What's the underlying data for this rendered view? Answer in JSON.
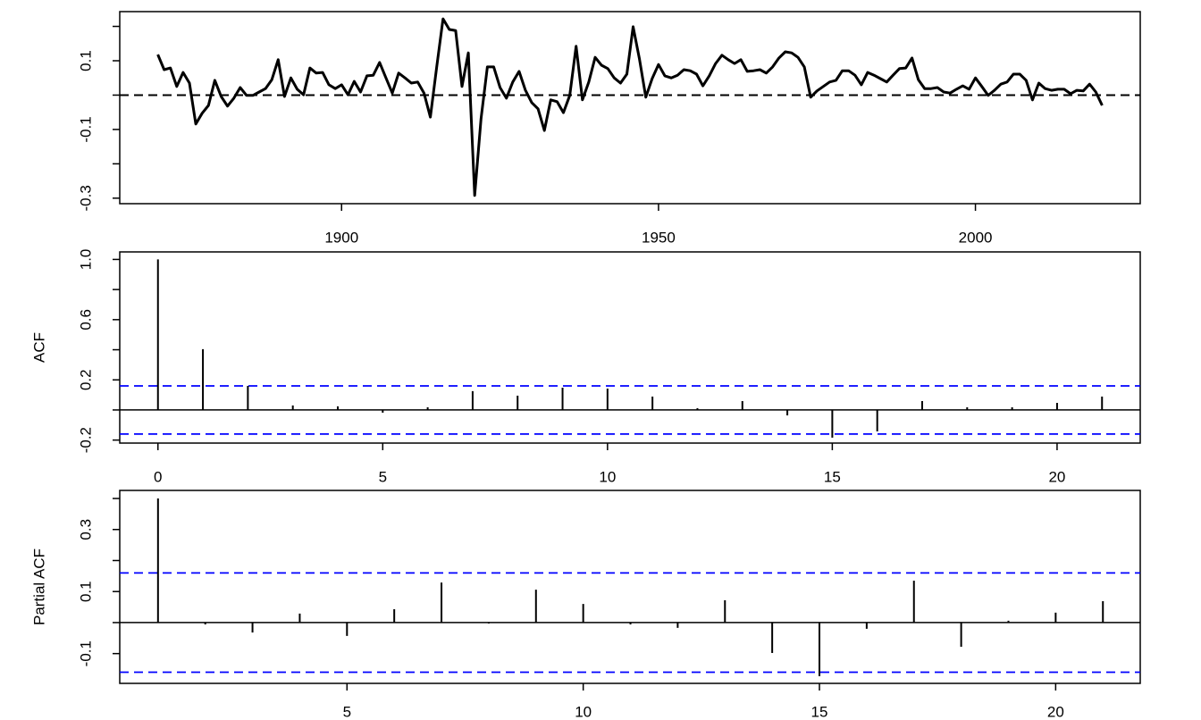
{
  "chart_data": [
    {
      "type": "line",
      "color": "#000000",
      "x": [
        1871,
        1872,
        1873,
        1874,
        1875,
        1876,
        1877,
        1878,
        1879,
        1880,
        1881,
        1882,
        1883,
        1884,
        1885,
        1886,
        1887,
        1888,
        1889,
        1890,
        1891,
        1892,
        1893,
        1894,
        1895,
        1896,
        1897,
        1898,
        1899,
        1900,
        1901,
        1902,
        1903,
        1904,
        1905,
        1906,
        1907,
        1908,
        1909,
        1910,
        1911,
        1912,
        1913,
        1914,
        1915,
        1916,
        1917,
        1918,
        1919,
        1920,
        1921,
        1922,
        1923,
        1924,
        1925,
        1926,
        1927,
        1928,
        1929,
        1930,
        1931,
        1932,
        1933,
        1934,
        1935,
        1936,
        1937,
        1938,
        1939,
        1940,
        1941,
        1942,
        1943,
        1944,
        1945,
        1946,
        1947,
        1948,
        1949,
        1950,
        1951,
        1952,
        1953,
        1954,
        1955,
        1956,
        1957,
        1958,
        1959,
        1960,
        1961,
        1962,
        1963,
        1964,
        1965,
        1966,
        1967,
        1968,
        1969,
        1970,
        1971,
        1972,
        1973,
        1974,
        1975,
        1976,
        1977,
        1978,
        1979,
        1980,
        1981,
        1982,
        1983,
        1984,
        1985,
        1986,
        1987,
        1988,
        1989,
        1990,
        1991,
        1992,
        1993,
        1994,
        1995,
        1996,
        1997,
        1998,
        1999,
        2000,
        2001,
        2002,
        2003,
        2004,
        2005,
        2006,
        2007,
        2008,
        2009,
        2010,
        2011,
        2012,
        2013,
        2014,
        2015,
        2016,
        2017,
        2018,
        2019,
        2020
      ],
      "values": [
        0.118,
        0.074,
        0.079,
        0.025,
        0.066,
        0.035,
        -0.084,
        -0.053,
        -0.03,
        0.043,
        -0.004,
        -0.032,
        -0.009,
        0.022,
        -0.001,
        -0.001,
        0.009,
        0.019,
        0.045,
        0.103,
        -0.004,
        0.05,
        0.017,
        0.001,
        0.079,
        0.064,
        0.066,
        0.03,
        0.019,
        0.03,
        0.001,
        0.04,
        0.009,
        0.056,
        0.058,
        0.095,
        0.05,
        0.006,
        0.064,
        0.05,
        0.035,
        0.038,
        0.006,
        -0.064,
        0.082,
        0.222,
        0.191,
        0.188,
        0.025,
        0.123,
        -0.292,
        -0.069,
        0.082,
        0.082,
        0.022,
        -0.009,
        0.038,
        0.069,
        0.014,
        -0.022,
        -0.04,
        -0.103,
        -0.014,
        -0.019,
        -0.051,
        -0.001,
        0.142,
        -0.014,
        0.038,
        0.11,
        0.087,
        0.077,
        0.05,
        0.035,
        0.061,
        0.199,
        0.105,
        -0.006,
        0.048,
        0.089,
        0.056,
        0.05,
        0.058,
        0.074,
        0.071,
        0.061,
        0.027,
        0.056,
        0.092,
        0.116,
        0.103,
        0.092,
        0.103,
        0.069,
        0.071,
        0.074,
        0.064,
        0.082,
        0.108,
        0.126,
        0.123,
        0.11,
        0.082,
        -0.006,
        0.012,
        0.025,
        0.038,
        0.043,
        0.071,
        0.071,
        0.058,
        0.03,
        0.066,
        0.058,
        0.048,
        0.038,
        0.058,
        0.077,
        0.079,
        0.108,
        0.045,
        0.019,
        0.019,
        0.022,
        0.009,
        0.006,
        0.017,
        0.027,
        0.017,
        0.05,
        0.025,
        -0.001,
        0.014,
        0.032,
        0.038,
        0.061,
        0.061,
        0.043,
        -0.014,
        0.035,
        0.019,
        0.014,
        0.017,
        0.017,
        0.004,
        0.014,
        0.012,
        0.032,
        0.009,
        -0.03
      ],
      "xlim": [
        1865,
        2026
      ],
      "ylim": [
        -0.316,
        0.243
      ],
      "xticks": [
        1900,
        1950,
        2000
      ],
      "yticks": [
        -0.3,
        -0.1,
        0.1
      ],
      "yminor": [
        -0.2,
        0,
        0.2
      ],
      "hline": 0,
      "hline_dashed": true
    },
    {
      "type": "stem",
      "color": "#000000",
      "ylabel": "ACF",
      "x": [
        0,
        1,
        2,
        3,
        4,
        5,
        6,
        7,
        8,
        9,
        10,
        11,
        12,
        13,
        14,
        15,
        16,
        17,
        18,
        19,
        20,
        21
      ],
      "values": [
        1.0,
        0.404,
        0.16,
        0.03,
        0.024,
        -0.018,
        0.018,
        0.125,
        0.095,
        0.148,
        0.142,
        0.089,
        0.012,
        0.059,
        -0.036,
        -0.184,
        -0.142,
        0.059,
        0.018,
        0.018,
        0.047,
        0.089
      ],
      "xlim": [
        -0.85,
        21.85
      ],
      "ylim": [
        -0.22,
        1.05
      ],
      "xticks": [
        0,
        5,
        10,
        15,
        20
      ],
      "yticks": [
        -0.2,
        0.2,
        0.6,
        {
          "value": 1,
          "label": "1.0"
        }
      ],
      "yminor": [
        0,
        0.4,
        0.8
      ],
      "hline": 0,
      "hline_dashed": false,
      "ci": 0.16,
      "ci_color": "#0000ff"
    },
    {
      "type": "stem",
      "color": "#000000",
      "ylabel": "Partial ACF",
      "x": [
        1,
        2,
        3,
        4,
        5,
        6,
        7,
        8,
        9,
        10,
        11,
        12,
        13,
        14,
        15,
        16,
        17,
        18,
        19,
        20,
        21
      ],
      "values": [
        0.4,
        -0.006,
        -0.032,
        0.029,
        -0.043,
        0.043,
        0.129,
        -0.003,
        0.106,
        0.06,
        -0.006,
        -0.017,
        0.072,
        -0.098,
        -0.173,
        -0.02,
        0.135,
        -0.078,
        0.006,
        0.032,
        0.069
      ],
      "xlim": [
        0.19,
        21.79
      ],
      "ylim": [
        -0.196,
        0.426
      ],
      "xticks": [
        5,
        10,
        15,
        20
      ],
      "yticks": [
        -0.1,
        0.1,
        0.3
      ],
      "yminor": [
        0,
        0.2,
        0.4
      ],
      "hline": 0,
      "hline_dashed": false,
      "ci": 0.16,
      "ci_color": "#0000ff"
    }
  ]
}
